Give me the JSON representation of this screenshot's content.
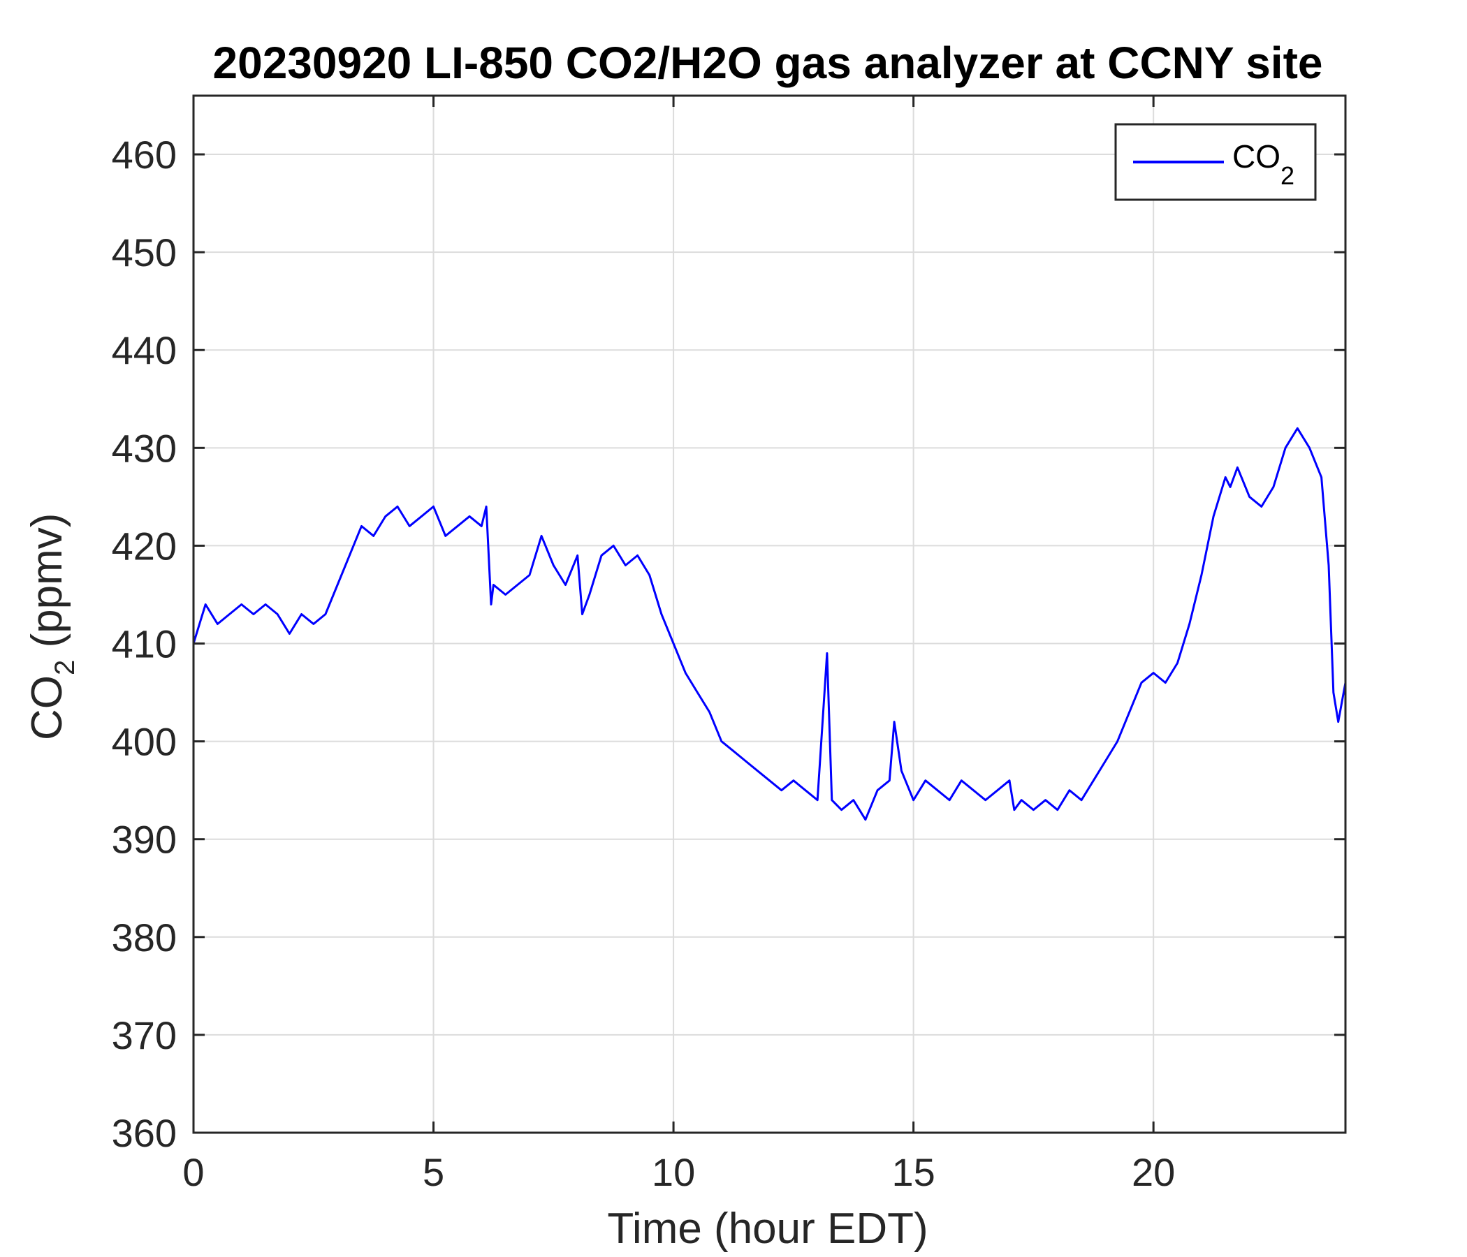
{
  "chart_data": {
    "type": "line",
    "title": "20230920 LI-850 CO2/H2O gas analyzer at CCNY site",
    "xlabel": "Time (hour EDT)",
    "ylabel": {
      "main": "CO",
      "sub": "2",
      "rest": " (ppmv)"
    },
    "xlim": [
      0,
      24
    ],
    "ylim": [
      360,
      466
    ],
    "xticks": [
      0,
      5,
      10,
      15,
      20
    ],
    "yticks": [
      360,
      370,
      380,
      390,
      400,
      410,
      420,
      430,
      440,
      450,
      460
    ],
    "grid": true,
    "legend": {
      "position": "top-right",
      "label_main": "CO",
      "label_sub": "2"
    },
    "colors": {
      "series": "#0000ff",
      "grid": "#dcdcdc",
      "axis": "#262626"
    },
    "series": [
      {
        "name": "CO2",
        "x": [
          0.0,
          0.25,
          0.5,
          0.75,
          1.0,
          1.25,
          1.5,
          1.75,
          2.0,
          2.25,
          2.5,
          2.75,
          3.0,
          3.25,
          3.5,
          3.75,
          4.0,
          4.25,
          4.5,
          4.75,
          5.0,
          5.25,
          5.5,
          5.75,
          6.0,
          6.1,
          6.2,
          6.25,
          6.5,
          6.75,
          7.0,
          7.25,
          7.5,
          7.75,
          8.0,
          8.1,
          8.25,
          8.5,
          8.75,
          9.0,
          9.25,
          9.5,
          9.75,
          10.0,
          10.25,
          10.5,
          10.75,
          11.0,
          11.25,
          11.5,
          11.75,
          12.0,
          12.25,
          12.5,
          12.75,
          13.0,
          13.2,
          13.3,
          13.5,
          13.75,
          14.0,
          14.25,
          14.5,
          14.6,
          14.75,
          15.0,
          15.25,
          15.5,
          15.75,
          16.0,
          16.25,
          16.5,
          16.75,
          17.0,
          17.1,
          17.25,
          17.5,
          17.75,
          18.0,
          18.25,
          18.5,
          18.75,
          19.0,
          19.25,
          19.5,
          19.75,
          20.0,
          20.25,
          20.5,
          20.75,
          21.0,
          21.25,
          21.5,
          21.6,
          21.75,
          22.0,
          22.25,
          22.5,
          22.75,
          23.0,
          23.25,
          23.5,
          23.65,
          23.75,
          23.85,
          24.0
        ],
        "y": [
          410,
          414,
          412,
          413,
          414,
          413,
          414,
          413,
          411,
          413,
          412,
          413,
          416,
          419,
          422,
          421,
          423,
          424,
          422,
          423,
          424,
          421,
          422,
          423,
          422,
          424,
          414,
          416,
          415,
          416,
          417,
          421,
          418,
          416,
          419,
          413,
          415,
          419,
          420,
          418,
          419,
          417,
          413,
          410,
          407,
          405,
          403,
          400,
          399,
          398,
          397,
          396,
          395,
          396,
          395,
          394,
          409,
          394,
          393,
          394,
          392,
          395,
          396,
          402,
          397,
          394,
          396,
          395,
          394,
          396,
          395,
          394,
          395,
          396,
          393,
          394,
          393,
          394,
          393,
          395,
          394,
          396,
          398,
          400,
          403,
          406,
          407,
          406,
          408,
          412,
          417,
          423,
          427,
          426,
          428,
          425,
          424,
          426,
          430,
          432,
          430,
          427,
          418,
          405,
          402,
          406
        ]
      }
    ]
  }
}
